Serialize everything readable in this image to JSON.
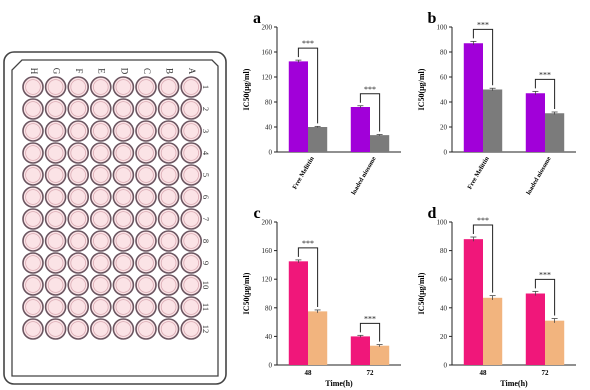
{
  "plate": {
    "row_labels": [
      "A",
      "B",
      "C",
      "D",
      "E",
      "F",
      "G",
      "H"
    ],
    "col_labels": [
      "1",
      "2",
      "3",
      "4",
      "5",
      "6",
      "7",
      "8",
      "9",
      "10",
      "11",
      "12"
    ],
    "well_fill": "#fbe3e6",
    "well_stroke": "#6b5560"
  },
  "chart_data": [
    {
      "type": "bar",
      "panel_label": "a",
      "categories": [
        "Free Melittin",
        "Melittin loaded niosome"
      ],
      "series": [
        {
          "color": "#a100d9",
          "values": [
            145,
            72
          ]
        },
        {
          "color": "#7b7b7b",
          "values": [
            40,
            27
          ]
        }
      ],
      "errors": [
        [
          2,
          2
        ],
        [
          1,
          1
        ]
      ],
      "ylim": [
        0,
        200
      ],
      "yticks": [
        0,
        40,
        80,
        120,
        160,
        200
      ],
      "ylabel": "IC50(μg/ml)",
      "xlabel": "",
      "significance": "***",
      "grid": false
    },
    {
      "type": "bar",
      "panel_label": "b",
      "categories": [
        "Free Melittin",
        "Melittin loaded niosome"
      ],
      "series": [
        {
          "color": "#a100d9",
          "values": [
            87,
            47
          ]
        },
        {
          "color": "#7b7b7b",
          "values": [
            50,
            31
          ]
        }
      ],
      "errors": [
        [
          1.5,
          1.5
        ],
        [
          1,
          1
        ]
      ],
      "ylim": [
        0,
        100
      ],
      "yticks": [
        0,
        20,
        40,
        60,
        80,
        100
      ],
      "ylabel": "IC50(μg/ml)",
      "xlabel": "",
      "significance": "***",
      "grid": false
    },
    {
      "type": "bar",
      "panel_label": "c",
      "categories": [
        "48",
        "72"
      ],
      "series": [
        {
          "color": "#f0177a",
          "values": [
            145,
            40
          ]
        },
        {
          "color": "#f2b47e",
          "values": [
            75,
            27
          ]
        }
      ],
      "errors": [
        [
          2,
          1.5
        ],
        [
          2,
          1.5
        ]
      ],
      "ylim": [
        0,
        200
      ],
      "yticks": [
        0,
        40,
        80,
        120,
        160,
        200
      ],
      "ylabel": "IC50(μg/ml)",
      "xlabel": "Time(h)",
      "significance": "***",
      "grid": false
    },
    {
      "type": "bar",
      "panel_label": "d",
      "categories": [
        "48",
        "72"
      ],
      "series": [
        {
          "color": "#f0177a",
          "values": [
            88,
            50
          ]
        },
        {
          "color": "#f2b47e",
          "values": [
            47,
            31
          ]
        }
      ],
      "errors": [
        [
          1.5,
          1.5
        ],
        [
          1.5,
          1.5
        ]
      ],
      "ylim": [
        0,
        100
      ],
      "yticks": [
        0,
        20,
        40,
        60,
        80,
        100
      ],
      "ylabel": "IC50(μg/ml)",
      "xlabel": "Time(h)",
      "significance": "***",
      "grid": false
    }
  ]
}
